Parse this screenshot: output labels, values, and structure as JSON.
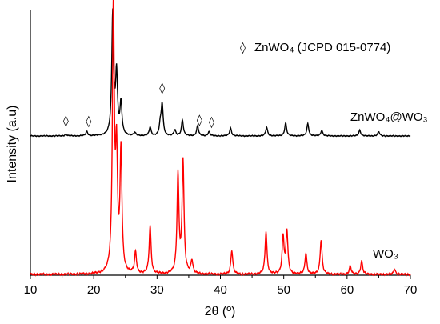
{
  "chart_data": {
    "type": "line",
    "xlabel": "2θ (º)",
    "ylabel": "Intensity (a.u)",
    "xlim": [
      10,
      70
    ],
    "xticks": [
      10,
      20,
      30,
      40,
      50,
      60,
      70
    ],
    "yticks_visible": false,
    "grid": false,
    "legend": {
      "marker": "◊",
      "text": "ZnWO₄ (JCPD 015-0774)",
      "placement": "top-right"
    },
    "series": [
      {
        "name": "ZnWO₄@WO₃",
        "color": "#000000",
        "baseline": 0.0,
        "peaks": [
          {
            "x": 15.6,
            "h": 0.012
          },
          {
            "x": 18.9,
            "h": 0.03
          },
          {
            "x": 23.0,
            "h": 0.85
          },
          {
            "x": 23.6,
            "h": 0.42
          },
          {
            "x": 24.3,
            "h": 0.22
          },
          {
            "x": 26.5,
            "h": 0.02
          },
          {
            "x": 28.9,
            "h": 0.06
          },
          {
            "x": 30.5,
            "h": 0.07
          },
          {
            "x": 30.8,
            "h": 0.22
          },
          {
            "x": 32.8,
            "h": 0.04
          },
          {
            "x": 34.0,
            "h": 0.11
          },
          {
            "x": 36.4,
            "h": 0.07
          },
          {
            "x": 38.2,
            "h": 0.03
          },
          {
            "x": 41.6,
            "h": 0.055
          },
          {
            "x": 47.3,
            "h": 0.06
          },
          {
            "x": 50.3,
            "h": 0.09
          },
          {
            "x": 53.8,
            "h": 0.085
          },
          {
            "x": 56.0,
            "h": 0.04
          },
          {
            "x": 62.0,
            "h": 0.04
          },
          {
            "x": 65.0,
            "h": 0.03
          }
        ],
        "diamond_markers_x": [
          15.6,
          19.2,
          30.8,
          36.7,
          38.6
        ]
      },
      {
        "name": "WO₃",
        "color": "#ff0000",
        "baseline": 0.0,
        "peaks": [
          {
            "x": 23.1,
            "h": 1.0
          },
          {
            "x": 23.6,
            "h": 0.42
          },
          {
            "x": 24.3,
            "h": 0.45
          },
          {
            "x": 26.6,
            "h": 0.08
          },
          {
            "x": 28.9,
            "h": 0.18
          },
          {
            "x": 33.3,
            "h": 0.37
          },
          {
            "x": 34.1,
            "h": 0.42
          },
          {
            "x": 35.5,
            "h": 0.05
          },
          {
            "x": 41.8,
            "h": 0.09
          },
          {
            "x": 47.2,
            "h": 0.16
          },
          {
            "x": 49.9,
            "h": 0.14
          },
          {
            "x": 50.5,
            "h": 0.16
          },
          {
            "x": 53.5,
            "h": 0.08
          },
          {
            "x": 55.9,
            "h": 0.13
          },
          {
            "x": 60.5,
            "h": 0.03
          },
          {
            "x": 62.3,
            "h": 0.05
          },
          {
            "x": 67.5,
            "h": 0.02
          }
        ]
      }
    ],
    "annotations": [
      {
        "text": "ZnWO₄@WO₃",
        "series": "ZnWO₄@WO₃"
      },
      {
        "text": "WO₃",
        "series": "WO₃"
      }
    ]
  }
}
